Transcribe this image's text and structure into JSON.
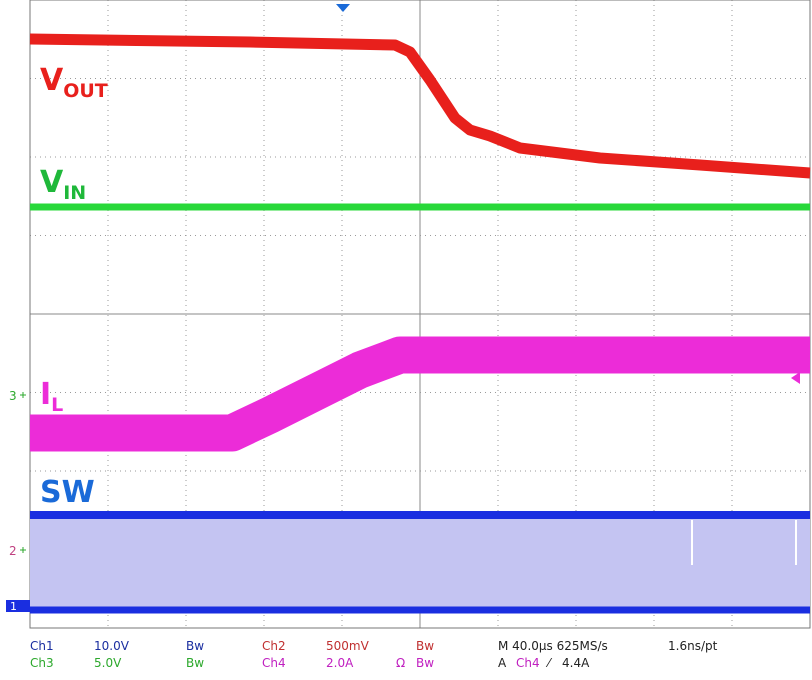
{
  "traces": [
    {
      "main": "V",
      "sub": "OUT"
    },
    {
      "main": "V",
      "sub": "IN"
    },
    {
      "main": "I",
      "sub": "L"
    },
    {
      "main": "SW"
    }
  ],
  "markers": {
    "ch3": "3",
    "ch2": "2",
    "ch1": "1"
  },
  "status": {
    "row1": [
      "Ch1",
      "10.0V",
      "Bw",
      "Ch2",
      "500mV",
      "Bw",
      "M 40.0µs 625MS/s",
      "1.6ns/pt"
    ],
    "row2": [
      "Ch3",
      "5.0V",
      "Bw",
      "Ch4",
      "2.0A",
      "Ω",
      "Bw",
      "A",
      "Ch4",
      "⁄",
      "4.4A"
    ]
  }
}
